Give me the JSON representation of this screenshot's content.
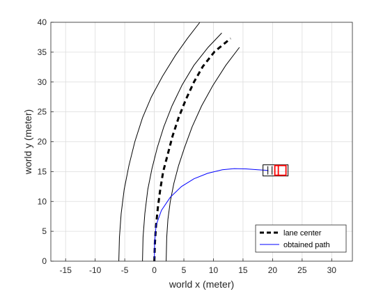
{
  "chart_data": {
    "type": "line",
    "xlabel": "world x (meter)",
    "ylabel": "world y (meter)",
    "xlim": [
      -17.5,
      33.5
    ],
    "ylim": [
      0,
      40
    ],
    "xticks": [
      -15,
      -10,
      -5,
      0,
      5,
      10,
      15,
      20,
      25,
      30
    ],
    "yticks": [
      0,
      5,
      10,
      15,
      20,
      25,
      30,
      35,
      40
    ],
    "grid": true,
    "legend_position": "bottom-right",
    "series": [
      {
        "name": "lane center",
        "color": "#000000",
        "style": "dashed",
        "points": [
          [
            0,
            0
          ],
          [
            0.1,
            3
          ],
          [
            0.3,
            6
          ],
          [
            0.6,
            9
          ],
          [
            1.0,
            12
          ],
          [
            1.5,
            15
          ],
          [
            2.3,
            18
          ],
          [
            3.1,
            21
          ],
          [
            4.1,
            24
          ],
          [
            5.3,
            27
          ],
          [
            6.7,
            30
          ],
          [
            8.2,
            32.6
          ],
          [
            10.2,
            35.1
          ],
          [
            12.9,
            37.3
          ]
        ]
      },
      {
        "name": "obtained path",
        "color": "#0000ff",
        "style": "solid",
        "points": [
          [
            0,
            0
          ],
          [
            0.05,
            3
          ],
          [
            0.3,
            6
          ],
          [
            1.2,
            8.5
          ],
          [
            2.7,
            10.7
          ],
          [
            4.6,
            12.5
          ],
          [
            6.7,
            13.8
          ],
          [
            9.0,
            14.7
          ],
          [
            11.5,
            15.3
          ],
          [
            13.5,
            15.5
          ],
          [
            15.5,
            15.45
          ],
          [
            17.5,
            15.3
          ],
          [
            19.3,
            15.2
          ]
        ]
      }
    ],
    "boundaries": [
      {
        "color": "#000000",
        "style": "solid",
        "points": [
          [
            -6,
            0
          ],
          [
            -5.9,
            4
          ],
          [
            -5.6,
            8
          ],
          [
            -5.1,
            12
          ],
          [
            -4.3,
            16
          ],
          [
            -3.3,
            20
          ],
          [
            -2.0,
            24
          ],
          [
            -0.5,
            27.5
          ],
          [
            1.4,
            31
          ],
          [
            3.6,
            34.5
          ],
          [
            5.6,
            37.3
          ],
          [
            7.7,
            40
          ]
        ]
      },
      {
        "color": "#000000",
        "style": "solid",
        "points": [
          [
            -2,
            0
          ],
          [
            -1.9,
            4
          ],
          [
            -1.6,
            8
          ],
          [
            -1.1,
            12
          ],
          [
            -0.4,
            15.5
          ],
          [
            0.5,
            19
          ],
          [
            1.6,
            22.5
          ],
          [
            3.0,
            26
          ],
          [
            4.7,
            29.5
          ],
          [
            6.7,
            32.8
          ],
          [
            9.1,
            35.8
          ],
          [
            11.4,
            38.2
          ]
        ]
      },
      {
        "color": "#000000",
        "style": "solid",
        "points": [
          [
            2,
            0
          ],
          [
            2.1,
            4
          ],
          [
            2.3,
            7
          ],
          [
            2.7,
            10
          ],
          [
            3.3,
            13
          ],
          [
            4.1,
            16
          ],
          [
            5.1,
            19
          ],
          [
            6.4,
            22.5
          ],
          [
            8.0,
            26
          ],
          [
            9.9,
            29.4
          ],
          [
            12.1,
            32.8
          ],
          [
            14.4,
            35.8
          ]
        ]
      }
    ],
    "vehicle": {
      "x": 20.5,
      "y": 15.2,
      "color": "#ff0000"
    }
  }
}
